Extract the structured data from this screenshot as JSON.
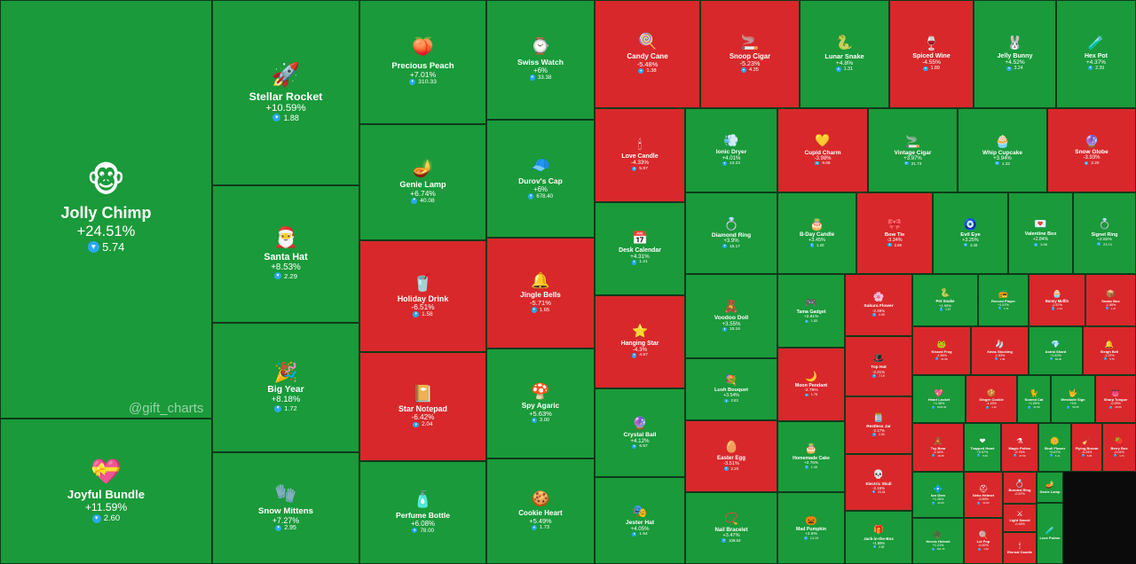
{
  "watermark": "@gift_charts",
  "colors": {
    "up": "#1a9a3a",
    "down": "#d8282b",
    "currency": "#2aa8f0"
  },
  "chart_data": {
    "type": "treemap",
    "title": "",
    "items": [
      {
        "name": "Jolly Chimp",
        "change": "+24.51%",
        "price": "5.74",
        "dir": "up",
        "icon": "🐵"
      },
      {
        "name": "Joyful Bundle",
        "change": "+11.59%",
        "price": "2.60",
        "dir": "up",
        "icon": "💝"
      },
      {
        "name": "Stellar Rocket",
        "change": "+10.59%",
        "price": "1.88",
        "dir": "up",
        "icon": "🚀"
      },
      {
        "name": "Santa Hat",
        "change": "+8.53%",
        "price": "2.29",
        "dir": "up",
        "icon": "🎅"
      },
      {
        "name": "Big Year",
        "change": "+8.18%",
        "price": "1.72",
        "dir": "up",
        "icon": "🎉"
      },
      {
        "name": "Snow Mittens",
        "change": "+7.27%",
        "price": "2.95",
        "dir": "up",
        "icon": "🧤"
      },
      {
        "name": "Precious Peach",
        "change": "+7.01%",
        "price": "310.33",
        "dir": "up",
        "icon": "🍑"
      },
      {
        "name": "Genie Lamp",
        "change": "+6.74%",
        "price": "40.08",
        "dir": "up",
        "icon": "🪔"
      },
      {
        "name": "Holiday Drink",
        "change": "-6.51%",
        "price": "1.58",
        "dir": "down",
        "icon": "🥤"
      },
      {
        "name": "Star Notepad",
        "change": "-6.42%",
        "price": "2.04",
        "dir": "down",
        "icon": "📔"
      },
      {
        "name": "Perfume Bottle",
        "change": "+6.08%",
        "price": "78.00",
        "dir": "up",
        "icon": "🧴"
      },
      {
        "name": "Swiss Watch",
        "change": "+6%",
        "price": "33.38",
        "dir": "up",
        "icon": "⌚"
      },
      {
        "name": "Durov's Cap",
        "change": "+6%",
        "price": "678.40",
        "dir": "up",
        "icon": "🧢"
      },
      {
        "name": "Jingle Bells",
        "change": "-5.71%",
        "price": "1.65",
        "dir": "down",
        "icon": "🔔"
      },
      {
        "name": "Spy Agaric",
        "change": "+5.63%",
        "price": "3.00",
        "dir": "up",
        "icon": "🍄"
      },
      {
        "name": "Cookie Heart",
        "change": "+5.49%",
        "price": "1.73",
        "dir": "up",
        "icon": "🍪"
      },
      {
        "name": "Candy Cane",
        "change": "-5.48%",
        "price": "1.38",
        "dir": "down",
        "icon": "🍭"
      },
      {
        "name": "Snoop Cigar",
        "change": "-5.23%",
        "price": "4.35",
        "dir": "down",
        "icon": "🚬"
      },
      {
        "name": "Lunar Snake",
        "change": "+4.8%",
        "price": "1.31",
        "dir": "up",
        "icon": "🐍"
      },
      {
        "name": "Spiced Wine",
        "change": "-4.55%",
        "price": "1.89",
        "dir": "down",
        "icon": "🍷"
      },
      {
        "name": "Jelly Bunny",
        "change": "+4.52%",
        "price": "3.24",
        "dir": "up",
        "icon": "🐰"
      },
      {
        "name": "Hex Pot",
        "change": "+4.37%",
        "price": "2.39",
        "dir": "up",
        "icon": "🧪"
      },
      {
        "name": "Love Candle",
        "change": "-4.33%",
        "price": "5.97",
        "dir": "down",
        "icon": "🕯"
      },
      {
        "name": "Desk Calendar",
        "change": "+4.31%",
        "price": "1.21",
        "dir": "up",
        "icon": "📅"
      },
      {
        "name": "Hanging Star",
        "change": "-4.3%",
        "price": "4.67",
        "dir": "down",
        "icon": "⭐"
      },
      {
        "name": "Crystal Ball",
        "change": "+4.12%",
        "price": "6.57",
        "dir": "up",
        "icon": "🔮"
      },
      {
        "name": "Jester Hat",
        "change": "+4.05%",
        "price": "1.54",
        "dir": "up",
        "icon": "🎭"
      },
      {
        "name": "Ionic Dryer",
        "change": "+4.01%",
        "price": "13.23",
        "dir": "up",
        "icon": "💨"
      },
      {
        "name": "Cupid Charm",
        "change": "-3.98%",
        "price": "9.65",
        "dir": "down",
        "icon": "💛"
      },
      {
        "name": "Vintage Cigar",
        "change": "+3.97%",
        "price": "21.73",
        "dir": "up",
        "icon": "🚬"
      },
      {
        "name": "Whip Cupcake",
        "change": "+3.94%",
        "price": "1.32",
        "dir": "up",
        "icon": "🧁"
      },
      {
        "name": "Snow Globe",
        "change": "-3.93%",
        "price": "2.20",
        "dir": "down",
        "icon": "🔮"
      },
      {
        "name": "Diamond Ring",
        "change": "+3.9%",
        "price": "15.17",
        "dir": "up",
        "icon": "💍"
      },
      {
        "name": "B-Day Candle",
        "change": "+3.45%",
        "price": "1.20",
        "dir": "up",
        "icon": "🎂"
      },
      {
        "name": "Bow Tie",
        "change": "-3.34%",
        "price": "2.89",
        "dir": "down",
        "icon": "🎀"
      },
      {
        "name": "Evil Eye",
        "change": "+3.25%",
        "price": "3.49",
        "dir": "up",
        "icon": "🧿"
      },
      {
        "name": "Valentine Box",
        "change": "+2.84%",
        "price": "3.98",
        "dir": "up",
        "icon": "💌"
      },
      {
        "name": "Signet Ring",
        "change": "+2.82%",
        "price": "23.74",
        "dir": "up",
        "icon": "💍"
      },
      {
        "name": "Voodoo Doll",
        "change": "+3.55%",
        "price": "15.16",
        "dir": "up",
        "icon": "🧸"
      },
      {
        "name": "Tama Gadget",
        "change": "+2.81%",
        "price": "1.83",
        "dir": "up",
        "icon": "🎮"
      },
      {
        "name": "Sakura Flower",
        "change": "-2.39%",
        "price": "4.09",
        "dir": "down",
        "icon": "🌸"
      },
      {
        "name": "Lush Bouquet",
        "change": "+3.54%",
        "price": "2.63",
        "dir": "up",
        "icon": "💐"
      },
      {
        "name": "Moon Pendant",
        "change": "-2.78%",
        "price": "1.75",
        "dir": "down",
        "icon": "🌙"
      },
      {
        "name": "Top Hat",
        "change": "-2.31%",
        "price": "7.19",
        "dir": "down",
        "icon": "🎩"
      },
      {
        "name": "Restless Jar",
        "change": "-2.17%",
        "price": "2.26",
        "dir": "down",
        "icon": "🫙"
      },
      {
        "name": "Easter Egg",
        "change": "-3.51%",
        "price": "2.20",
        "dir": "down",
        "icon": "🥚"
      },
      {
        "name": "Homemade Cake",
        "change": "+2.76%",
        "price": "1.49",
        "dir": "up",
        "icon": "🎂"
      },
      {
        "name": "Electric Skull",
        "change": "-2.16%",
        "price": "24.44",
        "dir": "down",
        "icon": "💀"
      },
      {
        "name": "Nail Bracelet",
        "change": "+3.47%",
        "price": "108.63",
        "dir": "up",
        "icon": "📿"
      },
      {
        "name": "Mad Pumpkin",
        "change": "+2.6%",
        "price": "14.19",
        "dir": "up",
        "icon": "🎃"
      },
      {
        "name": "Jack-in-the-Box",
        "change": "+1.99%",
        "price": "2.05",
        "dir": "up",
        "icon": "🎁"
      },
      {
        "name": "Pet Snake",
        "change": "+1.95%",
        "price": "1.57",
        "dir": "up",
        "icon": "🐍"
      },
      {
        "name": "Record Player",
        "change": "+1.57%",
        "price": "7.74",
        "dir": "up",
        "icon": "📻"
      },
      {
        "name": "Bunny Muffin",
        "change": "-1.57%",
        "price": "2.13",
        "dir": "down",
        "icon": "🧁"
      },
      {
        "name": "Snake Box",
        "change": "-1.55%",
        "price": "1.27",
        "dir": "down",
        "icon": "📦"
      },
      {
        "name": "Kissed Frog",
        "change": "-1.54%",
        "price": "61.89",
        "dir": "down",
        "icon": "🐸"
      },
      {
        "name": "Xmas Stocking",
        "change": "-1.53%",
        "price": "1.39",
        "dir": "down",
        "icon": "🧦"
      },
      {
        "name": "Astral Shard",
        "change": "+1.52%",
        "price": "69.00",
        "dir": "up",
        "icon": "💎"
      },
      {
        "name": "Sleigh Bell",
        "change": "-1.37%",
        "price": "5.75",
        "dir": "down",
        "icon": "🔔"
      },
      {
        "name": "Heart Locket",
        "change": "+1.36%",
        "price": "1000.00",
        "dir": "up",
        "icon": "💖"
      },
      {
        "name": "Ginger Cookie",
        "change": "-1.15%",
        "price": "1.12",
        "dir": "down",
        "icon": "🍪"
      },
      {
        "name": "Scared Cat",
        "change": "+1.09%",
        "price": "41.59",
        "dir": "up",
        "icon": "🐈"
      },
      {
        "name": "Westside Sign",
        "change": "+1%",
        "price": "56.66",
        "dir": "up",
        "icon": "🤟"
      },
      {
        "name": "Sharp Tongue",
        "change": "-0.99%",
        "price": "20.00",
        "dir": "down",
        "icon": "👅"
      },
      {
        "name": "Toy Bear",
        "change": "-1.34%",
        "price": "16.66",
        "dir": "down",
        "icon": "🧸"
      },
      {
        "name": "Trapped Heart",
        "change": "+0.97%",
        "price": "5.00",
        "dir": "up",
        "icon": "❤"
      },
      {
        "name": "Magic Potion",
        "change": "-0.75%",
        "price": "47.50",
        "dir": "down",
        "icon": "⚗"
      },
      {
        "name": "Skull Flower",
        "change": "+0.67%",
        "price": "3.11",
        "dir": "up",
        "icon": "🌼"
      },
      {
        "name": "Flying Broom",
        "change": "-0.24%",
        "price": "5.63",
        "dir": "down",
        "icon": "🧹"
      },
      {
        "name": "Berry Box",
        "change": "-0.01%",
        "price": "1.71",
        "dir": "down",
        "icon": "🍓"
      },
      {
        "name": "Ion Gem",
        "change": "+1.26%",
        "price": "42.00",
        "dir": "up",
        "icon": "💠"
      },
      {
        "name": "Neko Helmet",
        "change": "-0.89%",
        "price": "22.00",
        "dir": "down",
        "icon": "⛑"
      },
      {
        "name": "Bonded Ring",
        "change": "-0.57%",
        "price": "",
        "dir": "down",
        "icon": "💍"
      },
      {
        "name": "Light Sword",
        "change": "-0.46%",
        "price": "",
        "dir": "down",
        "icon": "⚔"
      },
      {
        "name": "Genie Lamp",
        "change": "",
        "price": "",
        "dir": "up",
        "icon": "🪔"
      },
      {
        "name": "Heroic Helmet",
        "change": "+1.21%",
        "price": "101.70",
        "dir": "up",
        "icon": "🪖"
      },
      {
        "name": "Lol Pop",
        "change": "-0.82%",
        "price": "1.43",
        "dir": "down",
        "icon": "🍭"
      },
      {
        "name": "Eternal Candle",
        "change": "",
        "price": "",
        "dir": "down",
        "icon": "🕯"
      },
      {
        "name": "Love Potion",
        "change": "",
        "price": "",
        "dir": "up",
        "icon": "🧪"
      }
    ]
  }
}
